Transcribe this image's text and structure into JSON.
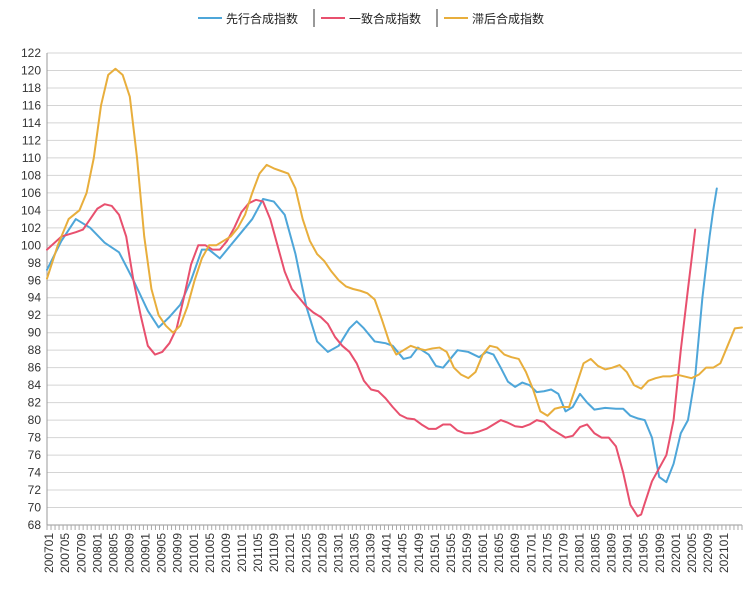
{
  "chart_data": {
    "type": "line",
    "title": "",
    "xlabel": "",
    "ylabel": "",
    "ylim": [
      68,
      122
    ],
    "yticks": [
      68,
      70,
      72,
      74,
      76,
      78,
      80,
      82,
      84,
      86,
      88,
      90,
      92,
      94,
      96,
      98,
      100,
      102,
      104,
      106,
      108,
      110,
      112,
      114,
      116,
      118,
      120,
      122
    ],
    "grid": true,
    "legend_position": "top-center",
    "x_tick_labels": [
      "200701",
      "200705",
      "200709",
      "200801",
      "200805",
      "200809",
      "200901",
      "200905",
      "200909",
      "201001",
      "201005",
      "201009",
      "201101",
      "201105",
      "201109",
      "201201",
      "201205",
      "201209",
      "201301",
      "201305",
      "201309",
      "201401",
      "201405",
      "201409",
      "201501",
      "201505",
      "201509",
      "201601",
      "201605",
      "201609",
      "201701",
      "201705",
      "201709",
      "201801",
      "201805",
      "201809",
      "201901",
      "201905",
      "201909",
      "202001",
      "202005",
      "202009",
      "202101"
    ],
    "months": 173,
    "series": [
      {
        "name": "先行合成指数",
        "color": "#4ea6d9",
        "points": [
          [
            0,
            97.2
          ],
          [
            4,
            100.5
          ],
          [
            8,
            103
          ],
          [
            12,
            102
          ],
          [
            16,
            100.3
          ],
          [
            20,
            99.2
          ],
          [
            24,
            96
          ],
          [
            28,
            92.5
          ],
          [
            31,
            90.6
          ],
          [
            34,
            91.8
          ],
          [
            37,
            93.2
          ],
          [
            40,
            96
          ],
          [
            43,
            99.5
          ],
          [
            45,
            99.5
          ],
          [
            48,
            98.5
          ],
          [
            51,
            100
          ],
          [
            54,
            101.5
          ],
          [
            57,
            103
          ],
          [
            60,
            105.3
          ],
          [
            63,
            105
          ],
          [
            66,
            103.5
          ],
          [
            69,
            99
          ],
          [
            72,
            93
          ],
          [
            75,
            89
          ],
          [
            78,
            87.8
          ],
          [
            81,
            88.5
          ],
          [
            84,
            90.5
          ],
          [
            86,
            91.3
          ],
          [
            88,
            90.5
          ],
          [
            91,
            89
          ],
          [
            94,
            88.8
          ],
          [
            96,
            88.5
          ],
          [
            99,
            87
          ],
          [
            101,
            87.2
          ],
          [
            103,
            88.3
          ],
          [
            106,
            87.5
          ],
          [
            108,
            86.2
          ],
          [
            110,
            86
          ],
          [
            112,
            87
          ],
          [
            114,
            88
          ],
          [
            117,
            87.8
          ],
          [
            120,
            87.2
          ],
          [
            122,
            87.8
          ],
          [
            124,
            87.5
          ],
          [
            126,
            86
          ],
          [
            128,
            84.4
          ],
          [
            130,
            83.8
          ],
          [
            132,
            84.3
          ],
          [
            134,
            84
          ],
          [
            136,
            83.2
          ],
          [
            138,
            83.3
          ],
          [
            140,
            83.5
          ],
          [
            142,
            83
          ],
          [
            144,
            81
          ],
          [
            146,
            81.5
          ],
          [
            148,
            83
          ],
          [
            150,
            82
          ],
          [
            152,
            81.2
          ],
          [
            155,
            81.4
          ],
          [
            158,
            81.3
          ],
          [
            160,
            81.3
          ],
          [
            162,
            80.5
          ],
          [
            164,
            80.2
          ],
          [
            166,
            80
          ],
          [
            168,
            78
          ],
          [
            170,
            73.5
          ],
          [
            172,
            72.9
          ],
          [
            174,
            75
          ],
          [
            176,
            78.5
          ],
          [
            178,
            80
          ],
          [
            180,
            85
          ],
          [
            182,
            94
          ],
          [
            184,
            101
          ],
          [
            185,
            104
          ],
          [
            186,
            106.5
          ]
        ]
      },
      {
        "name": "一致合成指数",
        "color": "#e8506e",
        "points": [
          [
            0,
            99.5
          ],
          [
            4,
            101
          ],
          [
            8,
            101.5
          ],
          [
            10,
            101.8
          ],
          [
            12,
            103
          ],
          [
            14,
            104.2
          ],
          [
            16,
            104.7
          ],
          [
            18,
            104.5
          ],
          [
            20,
            103.5
          ],
          [
            22,
            101
          ],
          [
            24,
            96
          ],
          [
            26,
            92
          ],
          [
            28,
            88.5
          ],
          [
            30,
            87.5
          ],
          [
            32,
            87.8
          ],
          [
            34,
            88.8
          ],
          [
            36,
            90.5
          ],
          [
            38,
            94
          ],
          [
            40,
            97.8
          ],
          [
            42,
            100
          ],
          [
            44,
            100
          ],
          [
            46,
            99.5
          ],
          [
            48,
            99.5
          ],
          [
            50,
            100.5
          ],
          [
            52,
            102
          ],
          [
            54,
            103.8
          ],
          [
            56,
            104.8
          ],
          [
            58,
            105.2
          ],
          [
            60,
            105
          ],
          [
            62,
            103
          ],
          [
            64,
            100
          ],
          [
            66,
            97
          ],
          [
            68,
            95
          ],
          [
            70,
            94
          ],
          [
            72,
            93
          ],
          [
            74,
            92.3
          ],
          [
            76,
            91.8
          ],
          [
            78,
            91
          ],
          [
            80,
            89.5
          ],
          [
            82,
            88.5
          ],
          [
            84,
            87.8
          ],
          [
            86,
            86.5
          ],
          [
            88,
            84.5
          ],
          [
            90,
            83.5
          ],
          [
            92,
            83.3
          ],
          [
            94,
            82.5
          ],
          [
            96,
            81.5
          ],
          [
            98,
            80.6
          ],
          [
            100,
            80.2
          ],
          [
            102,
            80.1
          ],
          [
            104,
            79.5
          ],
          [
            106,
            79
          ],
          [
            108,
            79
          ],
          [
            110,
            79.5
          ],
          [
            112,
            79.5
          ],
          [
            114,
            78.8
          ],
          [
            116,
            78.5
          ],
          [
            118,
            78.5
          ],
          [
            120,
            78.7
          ],
          [
            122,
            79
          ],
          [
            124,
            79.5
          ],
          [
            126,
            80
          ],
          [
            128,
            79.7
          ],
          [
            130,
            79.3
          ],
          [
            132,
            79.2
          ],
          [
            134,
            79.5
          ],
          [
            136,
            80
          ],
          [
            138,
            79.8
          ],
          [
            140,
            79
          ],
          [
            142,
            78.5
          ],
          [
            144,
            78
          ],
          [
            146,
            78.2
          ],
          [
            148,
            79.2
          ],
          [
            150,
            79.5
          ],
          [
            152,
            78.5
          ],
          [
            154,
            78
          ],
          [
            156,
            78
          ],
          [
            158,
            77
          ],
          [
            160,
            74
          ],
          [
            162,
            70.3
          ],
          [
            164,
            69
          ],
          [
            165,
            69.2
          ],
          [
            166,
            70.5
          ],
          [
            168,
            73
          ],
          [
            170,
            74.5
          ],
          [
            172,
            76
          ],
          [
            174,
            80
          ],
          [
            176,
            88
          ],
          [
            178,
            95
          ],
          [
            180,
            101.8
          ]
        ]
      },
      {
        "name": "滞后合成指数",
        "color": "#e8ae3c",
        "points": [
          [
            0,
            96.2
          ],
          [
            3,
            100
          ],
          [
            6,
            103
          ],
          [
            9,
            104
          ],
          [
            11,
            106
          ],
          [
            13,
            110
          ],
          [
            15,
            116
          ],
          [
            17,
            119.5
          ],
          [
            19,
            120.2
          ],
          [
            21,
            119.5
          ],
          [
            23,
            117
          ],
          [
            25,
            110
          ],
          [
            27,
            101
          ],
          [
            29,
            95
          ],
          [
            31,
            92
          ],
          [
            33,
            90.8
          ],
          [
            35,
            90
          ],
          [
            37,
            90.8
          ],
          [
            39,
            93
          ],
          [
            41,
            96
          ],
          [
            43,
            98.5
          ],
          [
            45,
            100
          ],
          [
            47,
            100
          ],
          [
            49,
            100.5
          ],
          [
            51,
            101
          ],
          [
            53,
            102
          ],
          [
            55,
            103.5
          ],
          [
            57,
            106
          ],
          [
            59,
            108.2
          ],
          [
            61,
            109.2
          ],
          [
            63,
            108.8
          ],
          [
            65,
            108.5
          ],
          [
            67,
            108.2
          ],
          [
            69,
            106.5
          ],
          [
            71,
            103
          ],
          [
            73,
            100.5
          ],
          [
            75,
            99
          ],
          [
            77,
            98.2
          ],
          [
            79,
            97
          ],
          [
            81,
            96
          ],
          [
            83,
            95.3
          ],
          [
            85,
            95
          ],
          [
            87,
            94.8
          ],
          [
            89,
            94.5
          ],
          [
            91,
            93.8
          ],
          [
            93,
            91.5
          ],
          [
            95,
            89
          ],
          [
            97,
            87.5
          ],
          [
            99,
            88
          ],
          [
            101,
            88.5
          ],
          [
            103,
            88.2
          ],
          [
            105,
            88
          ],
          [
            107,
            88.2
          ],
          [
            109,
            88.3
          ],
          [
            111,
            87.8
          ],
          [
            113,
            86
          ],
          [
            115,
            85.2
          ],
          [
            117,
            84.8
          ],
          [
            119,
            85.5
          ],
          [
            121,
            87.5
          ],
          [
            123,
            88.5
          ],
          [
            125,
            88.3
          ],
          [
            127,
            87.5
          ],
          [
            129,
            87.2
          ],
          [
            131,
            87
          ],
          [
            133,
            85.5
          ],
          [
            135,
            83.5
          ],
          [
            137,
            81
          ],
          [
            139,
            80.5
          ],
          [
            141,
            81.3
          ],
          [
            143,
            81.5
          ],
          [
            145,
            81.5
          ],
          [
            147,
            84
          ],
          [
            149,
            86.5
          ],
          [
            151,
            87
          ],
          [
            153,
            86.2
          ],
          [
            155,
            85.8
          ],
          [
            157,
            86
          ],
          [
            159,
            86.3
          ],
          [
            161,
            85.5
          ],
          [
            163,
            84
          ],
          [
            165,
            83.6
          ],
          [
            167,
            84.5
          ],
          [
            169,
            84.8
          ],
          [
            171,
            85
          ],
          [
            173,
            85
          ],
          [
            175,
            85.2
          ],
          [
            177,
            85
          ],
          [
            179,
            84.8
          ],
          [
            181,
            85.2
          ],
          [
            183,
            86
          ],
          [
            185,
            86
          ],
          [
            187,
            86.5
          ],
          [
            189,
            88.5
          ],
          [
            191,
            90.5
          ],
          [
            193,
            90.6
          ]
        ]
      }
    ]
  }
}
